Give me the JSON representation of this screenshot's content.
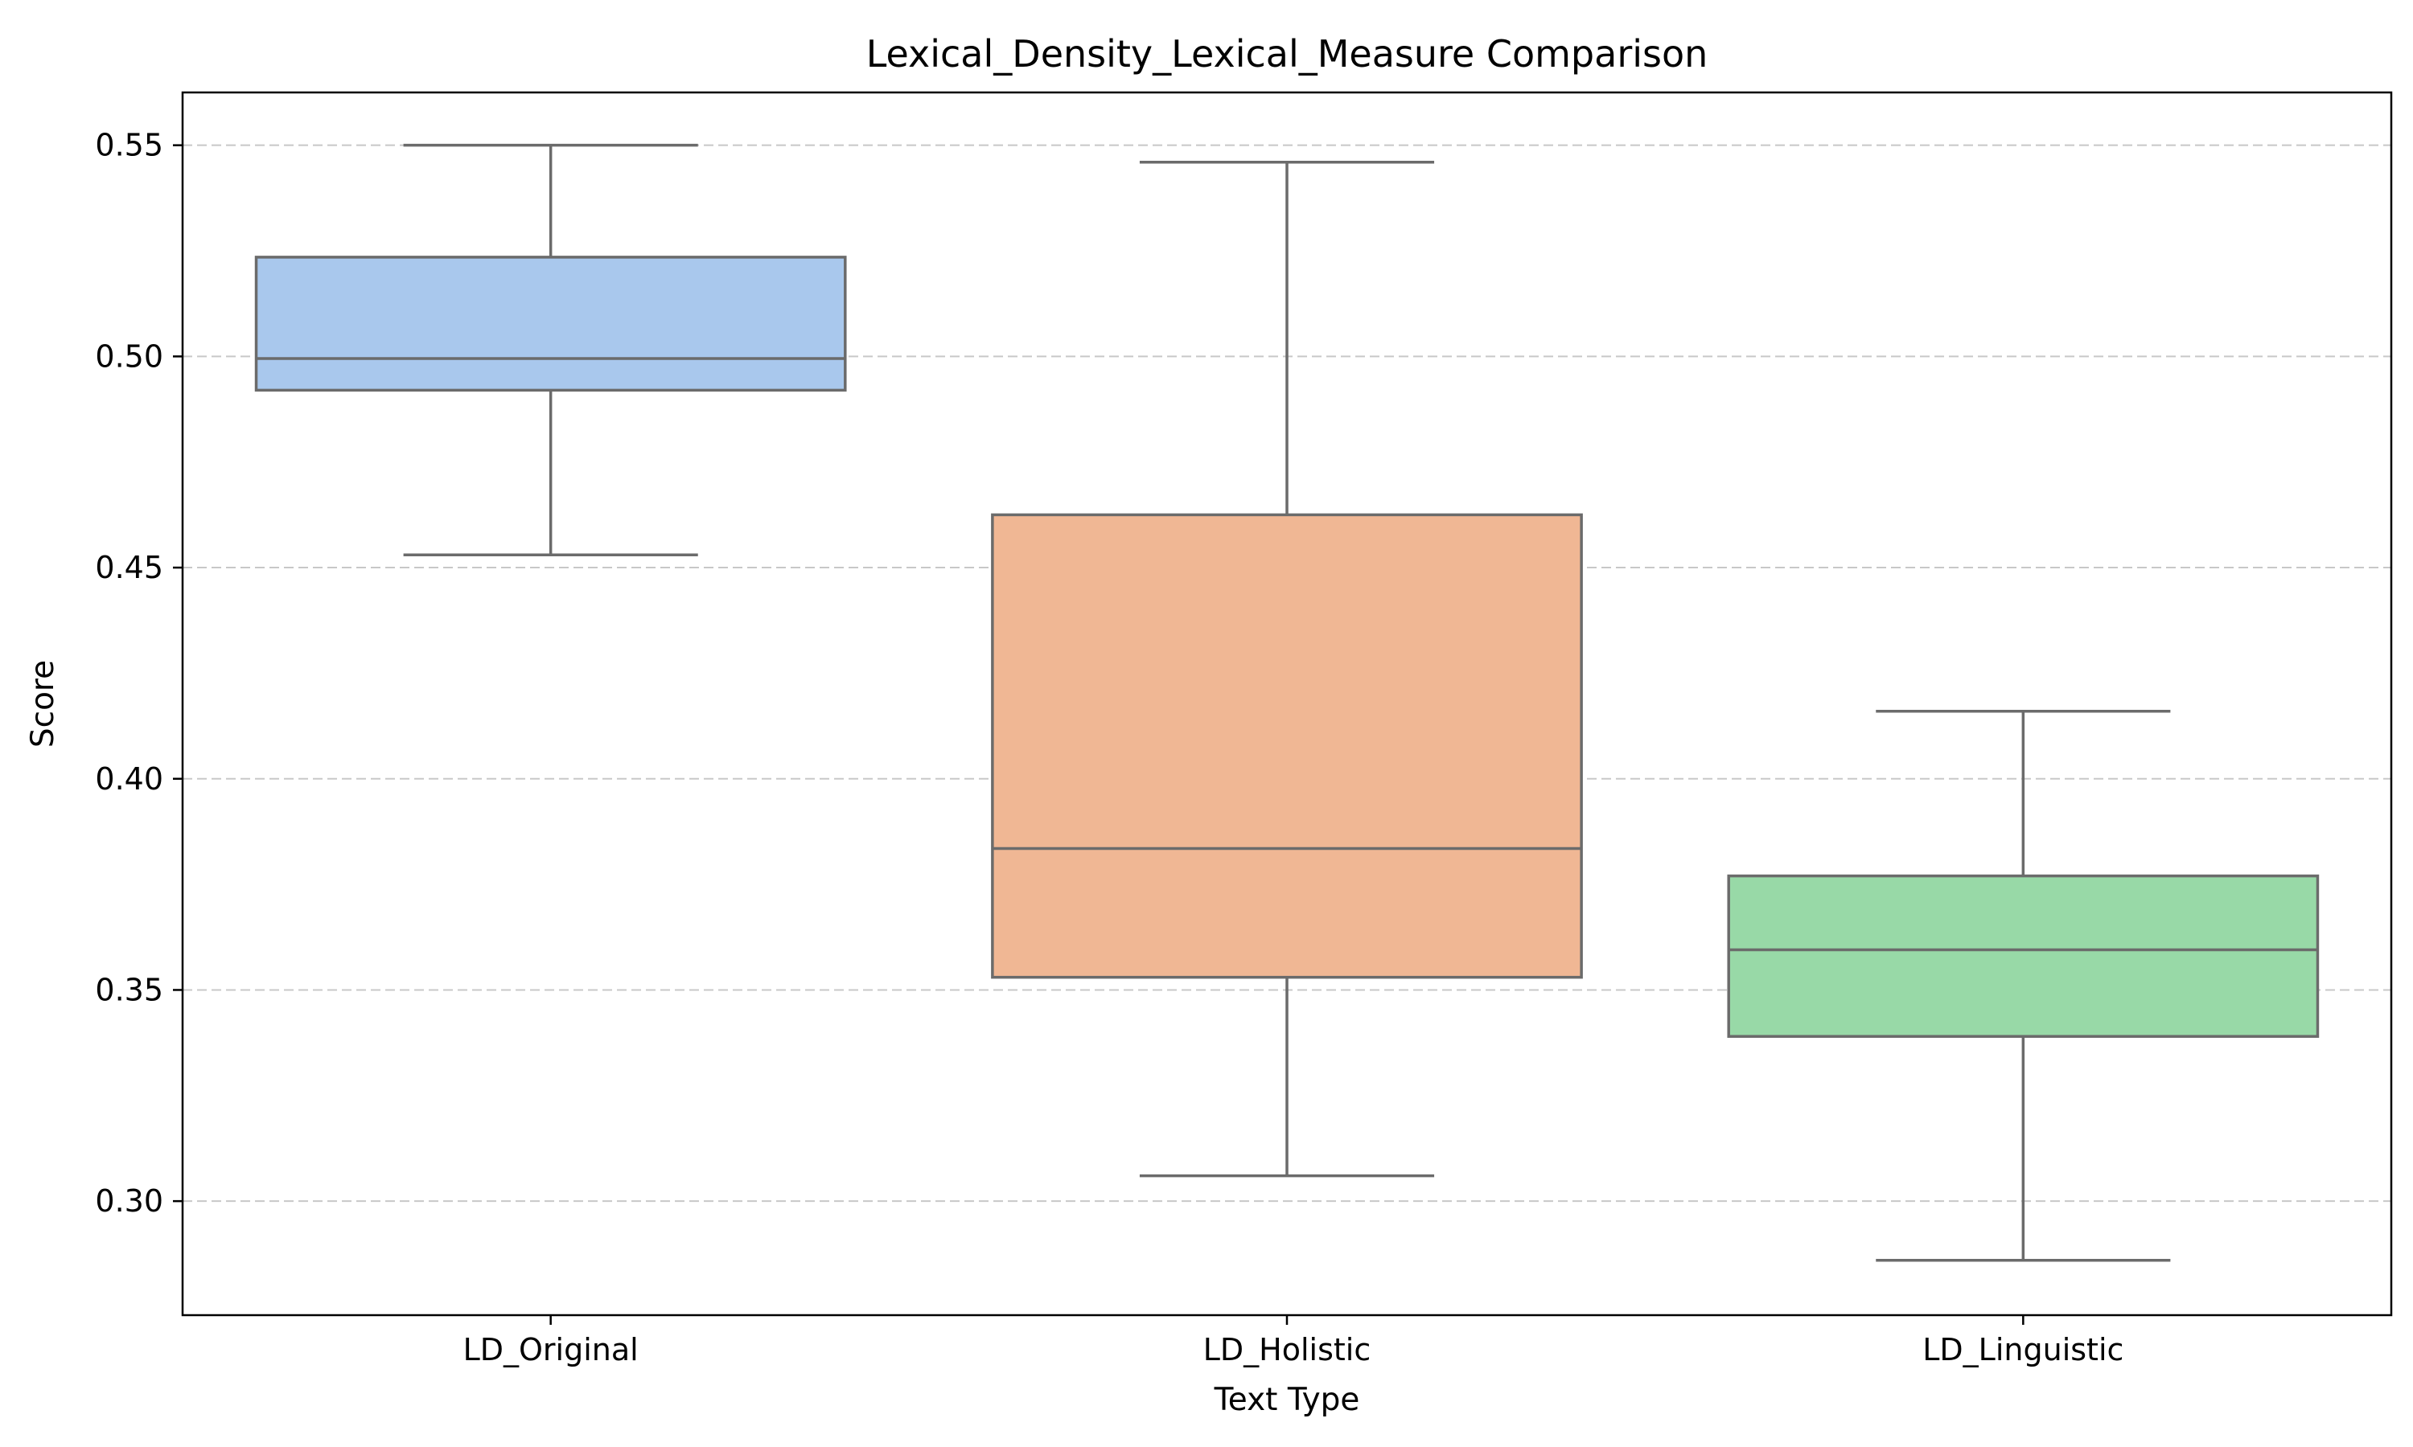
{
  "chart_data": {
    "type": "box",
    "title": "Lexical_Density_Lexical_Measure Comparison",
    "xlabel": "Text Type",
    "ylabel": "Score",
    "ylim": [
      0.273,
      0.5625
    ],
    "yticks": [
      0.3,
      0.35,
      0.4,
      0.45,
      0.5,
      0.55
    ],
    "ytick_labels": [
      "0.30",
      "0.35",
      "0.40",
      "0.45",
      "0.50",
      "0.55"
    ],
    "grid": "y-dashed",
    "categories": [
      "LD_Original",
      "LD_Holistic",
      "LD_Linguistic"
    ],
    "boxes": [
      {
        "category": "LD_Original",
        "whisker_low": 0.453,
        "q1": 0.492,
        "median": 0.4995,
        "q3": 0.5235,
        "whisker_high": 0.55,
        "color": "#a9c8ed"
      },
      {
        "category": "LD_Holistic",
        "whisker_low": 0.306,
        "q1": 0.353,
        "median": 0.3835,
        "q3": 0.4625,
        "whisker_high": 0.546,
        "color": "#f0b794"
      },
      {
        "category": "LD_Linguistic",
        "whisker_low": 0.286,
        "q1": 0.339,
        "median": 0.3595,
        "q3": 0.377,
        "whisker_high": 0.416,
        "color": "#98d9a7"
      }
    ],
    "line_color": "#6b6b6b",
    "grid_color": "#c8c8c8"
  }
}
